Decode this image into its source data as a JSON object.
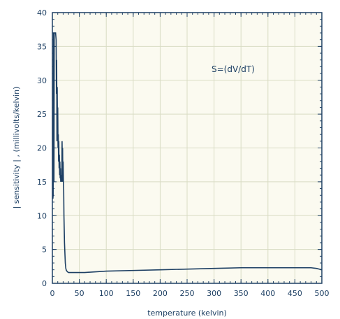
{
  "chart_data": {
    "type": "line",
    "title": "",
    "xlabel": "temperature (kelvin)",
    "ylabel": "| sensitivity | , (millivolts/kelvin)",
    "annotation": "S=(dV/dT)",
    "xlim": [
      0,
      500
    ],
    "ylim": [
      0,
      40
    ],
    "xticks": [
      0,
      50,
      100,
      150,
      200,
      250,
      300,
      350,
      400,
      450,
      500
    ],
    "yticks": [
      0,
      5,
      10,
      15,
      20,
      25,
      30,
      35,
      40
    ],
    "grid": true,
    "colors": {
      "line": "#1d3f63",
      "grid": "#d9dcc4",
      "frame": "#1d3f63"
    },
    "series": [
      {
        "x": [
          1,
          1.5,
          2,
          2.5,
          3,
          3.5,
          4,
          5,
          6,
          7,
          7.5,
          8,
          8.5,
          9,
          9.5,
          10,
          10.5,
          11,
          11.5,
          12,
          12.5,
          13,
          13.5,
          14,
          14.5,
          15,
          15.5,
          16,
          16.5,
          17,
          17.5,
          18,
          18.5,
          19,
          19.5,
          20,
          20.5,
          21,
          21.5,
          22,
          22.5,
          23,
          23.5,
          24,
          25,
          26,
          28,
          30,
          35,
          40,
          50,
          60,
          80,
          100,
          150,
          200,
          250,
          300,
          350,
          400,
          450,
          480,
          490,
          500
        ],
        "y": [
          12.5,
          13,
          37,
          37,
          15,
          37,
          37,
          37,
          37,
          36,
          28,
          33,
          21,
          29,
          23,
          26,
          20,
          22,
          18,
          21,
          17,
          19,
          16,
          18,
          15.5,
          17,
          15,
          16,
          15.5,
          16,
          15,
          21,
          18,
          20,
          15,
          18,
          15,
          14,
          10,
          8,
          6,
          5,
          4,
          3,
          2.2,
          1.9,
          1.7,
          1.6,
          1.6,
          1.6,
          1.6,
          1.6,
          1.7,
          1.8,
          1.9,
          2.0,
          2.1,
          2.2,
          2.3,
          2.3,
          2.3,
          2.3,
          2.2,
          2.0
        ]
      }
    ]
  }
}
